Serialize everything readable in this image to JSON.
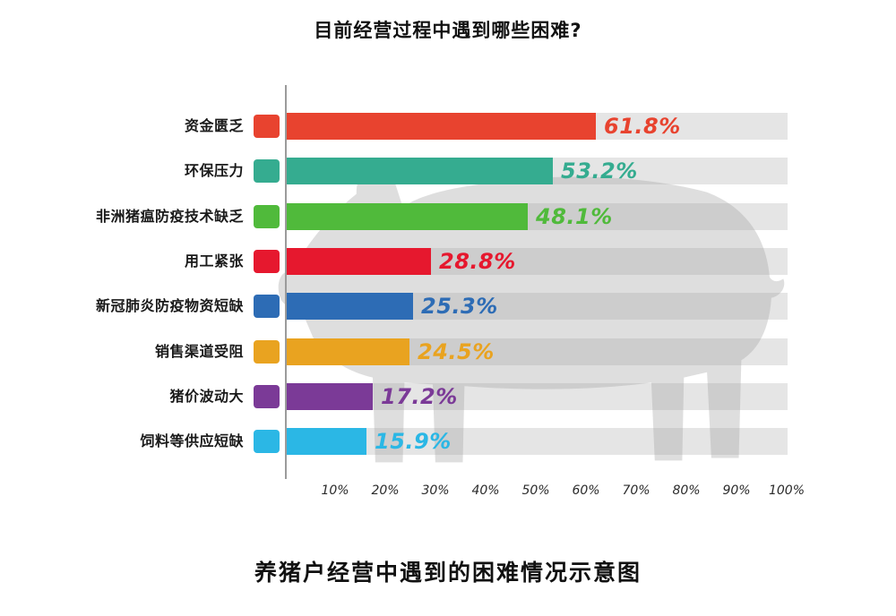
{
  "chart_data": {
    "type": "bar",
    "orientation": "horizontal",
    "title": "目前经营过程中遇到哪些困难?",
    "caption": "养猪户经营中遇到的困难情况示意图",
    "categories": [
      "资金匮乏",
      "环保压力",
      "非洲猪瘟防疫技术缺乏",
      "用工紧张",
      "新冠肺炎防疫物资短缺",
      "销售渠道受阻",
      "猪价波动大",
      "饲料等供应短缺"
    ],
    "values": [
      61.8,
      53.2,
      48.1,
      28.8,
      25.3,
      24.5,
      17.2,
      15.9
    ],
    "value_labels": [
      "61.8%",
      "53.2%",
      "48.1%",
      "28.8%",
      "25.3%",
      "24.5%",
      "17.2%",
      "15.9%"
    ],
    "bar_colors": [
      "#e8432f",
      "#35ac90",
      "#50ba3b",
      "#e6182e",
      "#2d6cb5",
      "#e9a320",
      "#7b3a97",
      "#2bb7e5"
    ],
    "xlim": [
      0,
      100
    ],
    "x_ticks": [
      "10%",
      "20%",
      "30%",
      "40%",
      "50%",
      "60%",
      "70%",
      "80%",
      "90%",
      "100%"
    ],
    "grid": "off",
    "legend": "none",
    "track_color": "#e5e5e5",
    "watermark": "pig-silhouette",
    "watermark_color": "#a0a0a0"
  }
}
